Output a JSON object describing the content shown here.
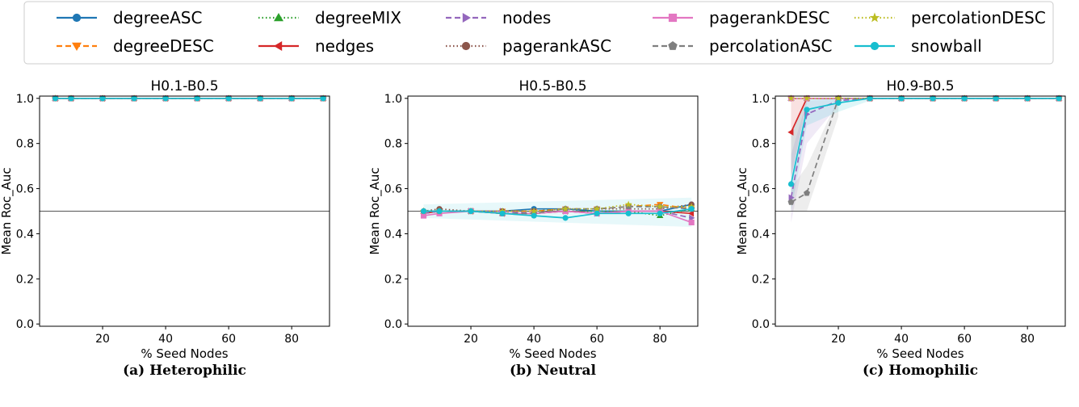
{
  "legend": {
    "location": "top",
    "columns": 5,
    "entries": [
      {
        "name": "degreeASC",
        "color": "#1f77b4",
        "dash": "solid",
        "marker": "circle"
      },
      {
        "name": "degreeDESC",
        "color": "#ff7f0e",
        "dash": "dashed",
        "marker": "triangle-down"
      },
      {
        "name": "degreeMIX",
        "color": "#2ca02c",
        "dash": "dotted",
        "marker": "triangle-up"
      },
      {
        "name": "nedges",
        "color": "#d62728",
        "dash": "solid",
        "marker": "triangle-left"
      },
      {
        "name": "nodes",
        "color": "#9467bd",
        "dash": "dashed",
        "marker": "triangle-right"
      },
      {
        "name": "pagerankASC",
        "color": "#8c564b",
        "dash": "dotted",
        "marker": "circle"
      },
      {
        "name": "pagerankDESC",
        "color": "#e377c2",
        "dash": "solid",
        "marker": "square"
      },
      {
        "name": "percolationASC",
        "color": "#7f7f7f",
        "dash": "dashed",
        "marker": "pentagon"
      },
      {
        "name": "percolationDESC",
        "color": "#bcbd22",
        "dash": "dotted",
        "marker": "star"
      },
      {
        "name": "snowball",
        "color": "#17becf",
        "dash": "solid",
        "marker": "circle"
      }
    ]
  },
  "chart_data": [
    {
      "type": "line",
      "title": "H0.1-B0.5",
      "caption": "(a) Heterophilic",
      "xlabel": "% Seed Nodes",
      "ylabel": "Mean Roc_Auc",
      "xlim": [
        0,
        92
      ],
      "ylim": [
        -0.01,
        1.01
      ],
      "xticks": [
        20,
        40,
        60,
        80
      ],
      "xtick_labels": [
        "20",
        "40",
        "60",
        "80"
      ],
      "yticks": [
        0.0,
        0.2,
        0.4,
        0.6,
        0.8,
        1.0
      ],
      "ytick_labels": [
        "0.0",
        "0.2",
        "0.4",
        "0.6",
        "0.8",
        "1.0"
      ],
      "reference_line": 0.5,
      "x": [
        5,
        10,
        20,
        30,
        40,
        50,
        60,
        70,
        80,
        90
      ],
      "series": [
        {
          "name": "degreeASC",
          "values": [
            1,
            1,
            1,
            1,
            1,
            1,
            1,
            1,
            1,
            1
          ]
        },
        {
          "name": "degreeDESC",
          "values": [
            1,
            1,
            1,
            1,
            1,
            1,
            1,
            1,
            1,
            1
          ]
        },
        {
          "name": "degreeMIX",
          "values": [
            1,
            1,
            1,
            1,
            1,
            1,
            1,
            1,
            1,
            1
          ]
        },
        {
          "name": "nedges",
          "values": [
            1,
            1,
            1,
            1,
            1,
            1,
            1,
            1,
            1,
            1
          ]
        },
        {
          "name": "nodes",
          "values": [
            1,
            1,
            1,
            1,
            1,
            1,
            1,
            1,
            1,
            1
          ]
        },
        {
          "name": "pagerankASC",
          "values": [
            1,
            1,
            1,
            1,
            1,
            1,
            1,
            1,
            1,
            1
          ]
        },
        {
          "name": "pagerankDESC",
          "values": [
            1,
            1,
            1,
            1,
            1,
            1,
            1,
            1,
            1,
            1
          ]
        },
        {
          "name": "percolationASC",
          "values": [
            1,
            1,
            1,
            1,
            1,
            1,
            1,
            1,
            1,
            1
          ]
        },
        {
          "name": "percolationDESC",
          "values": [
            1,
            1,
            1,
            1,
            1,
            1,
            1,
            1,
            1,
            1
          ]
        },
        {
          "name": "snowball",
          "values": [
            1,
            1,
            1,
            1,
            1,
            1,
            1,
            1,
            1,
            1
          ]
        }
      ]
    },
    {
      "type": "line",
      "title": "H0.5-B0.5",
      "caption": "(b) Neutral",
      "xlabel": "% Seed Nodes",
      "ylabel": "Mean Roc_Auc",
      "xlim": [
        0,
        92
      ],
      "ylim": [
        -0.01,
        1.01
      ],
      "xticks": [
        20,
        40,
        60,
        80
      ],
      "xtick_labels": [
        "20",
        "40",
        "60",
        "80"
      ],
      "yticks": [
        0.0,
        0.2,
        0.4,
        0.6,
        0.8,
        1.0
      ],
      "ytick_labels": [
        "0.0",
        "0.2",
        "0.4",
        "0.6",
        "0.8",
        "1.0"
      ],
      "reference_line": 0.5,
      "x": [
        5,
        10,
        20,
        30,
        40,
        50,
        60,
        70,
        80,
        90
      ],
      "series": [
        {
          "name": "degreeASC",
          "values": [
            0.5,
            0.5,
            0.5,
            0.5,
            0.51,
            0.51,
            0.5,
            0.5,
            0.5,
            0.53
          ]
        },
        {
          "name": "degreeDESC",
          "values": [
            0.49,
            0.5,
            0.5,
            0.5,
            0.5,
            0.51,
            0.51,
            0.52,
            0.53,
            0.51
          ]
        },
        {
          "name": "degreeMIX",
          "values": [
            0.5,
            0.5,
            0.5,
            0.49,
            0.49,
            0.5,
            0.5,
            0.5,
            0.48,
            0.51
          ]
        },
        {
          "name": "nedges",
          "values": [
            0.49,
            0.5,
            0.5,
            0.49,
            0.49,
            0.5,
            0.49,
            0.5,
            0.5,
            0.49
          ]
        },
        {
          "name": "nodes",
          "values": [
            0.49,
            0.5,
            0.5,
            0.5,
            0.49,
            0.5,
            0.49,
            0.5,
            0.5,
            0.47
          ]
        },
        {
          "name": "pagerankASC",
          "values": [
            0.5,
            0.51,
            0.5,
            0.5,
            0.5,
            0.51,
            0.51,
            0.51,
            0.51,
            0.53
          ]
        },
        {
          "name": "pagerankDESC",
          "values": [
            0.48,
            0.49,
            0.5,
            0.49,
            0.49,
            0.5,
            0.49,
            0.5,
            0.5,
            0.45
          ]
        },
        {
          "name": "percolationASC",
          "values": [
            0.5,
            0.5,
            0.5,
            0.49,
            0.49,
            0.51,
            0.51,
            0.52,
            0.52,
            0.51
          ]
        },
        {
          "name": "percolationDESC",
          "values": [
            0.5,
            0.5,
            0.5,
            0.5,
            0.5,
            0.51,
            0.51,
            0.53,
            0.52,
            0.52
          ]
        },
        {
          "name": "snowball",
          "values": [
            0.5,
            0.5,
            0.5,
            0.49,
            0.48,
            0.47,
            0.49,
            0.49,
            0.49,
            0.51
          ]
        }
      ]
    },
    {
      "type": "line",
      "title": "H0.9-B0.5",
      "caption": "(c) Homophilic",
      "xlabel": "% Seed Nodes",
      "ylabel": "Mean Roc_Auc",
      "xlim": [
        0,
        92
      ],
      "ylim": [
        -0.01,
        1.01
      ],
      "xticks": [
        20,
        40,
        60,
        80
      ],
      "xtick_labels": [
        "20",
        "40",
        "60",
        "80"
      ],
      "yticks": [
        0.0,
        0.2,
        0.4,
        0.6,
        0.8,
        1.0
      ],
      "ytick_labels": [
        "0.0",
        "0.2",
        "0.4",
        "0.6",
        "0.8",
        "1.0"
      ],
      "reference_line": 0.5,
      "x": [
        5,
        10,
        20,
        30,
        40,
        50,
        60,
        70,
        80,
        90
      ],
      "series": [
        {
          "name": "degreeASC",
          "values": [
            1,
            1,
            1,
            1,
            1,
            1,
            1,
            1,
            1,
            1
          ]
        },
        {
          "name": "degreeDESC",
          "values": [
            1,
            1,
            1,
            1,
            1,
            1,
            1,
            1,
            1,
            1
          ]
        },
        {
          "name": "degreeMIX",
          "values": [
            1,
            1,
            1,
            1,
            1,
            1,
            1,
            1,
            1,
            1
          ]
        },
        {
          "name": "nedges",
          "values": [
            0.85,
            1,
            1,
            1,
            1,
            1,
            1,
            1,
            1,
            1
          ]
        },
        {
          "name": "nodes",
          "values": [
            0.56,
            0.93,
            0.99,
            1,
            1,
            1,
            1,
            1,
            1,
            1
          ]
        },
        {
          "name": "pagerankASC",
          "values": [
            1,
            1,
            1,
            1,
            1,
            1,
            1,
            1,
            1,
            1
          ]
        },
        {
          "name": "pagerankDESC",
          "values": [
            1,
            1,
            1,
            1,
            1,
            1,
            1,
            1,
            1,
            1
          ]
        },
        {
          "name": "percolationASC",
          "values": [
            0.54,
            0.58,
            1,
            1,
            1,
            1,
            1,
            1,
            1,
            1
          ]
        },
        {
          "name": "percolationDESC",
          "values": [
            1,
            1,
            1,
            1,
            1,
            1,
            1,
            1,
            1,
            1
          ]
        },
        {
          "name": "snowball",
          "values": [
            0.62,
            0.95,
            0.98,
            1,
            1,
            1,
            1,
            1,
            1,
            1
          ]
        }
      ]
    }
  ]
}
